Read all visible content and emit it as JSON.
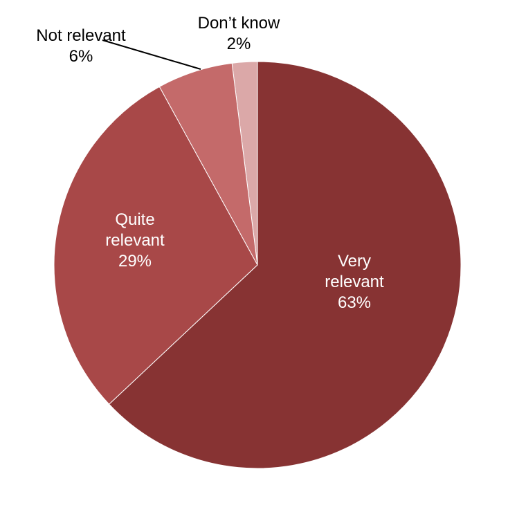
{
  "chart_data": {
    "type": "pie",
    "categories": [
      "Very relevant",
      "Quite relevant",
      "Not relevant",
      "Don’t know"
    ],
    "values": [
      63,
      29,
      6,
      2
    ],
    "value_labels": [
      "63%",
      "29%",
      "6%",
      "2%"
    ],
    "colors": [
      "#873333",
      "#a84848",
      "#c46a6a",
      "#dba8a8"
    ]
  }
}
